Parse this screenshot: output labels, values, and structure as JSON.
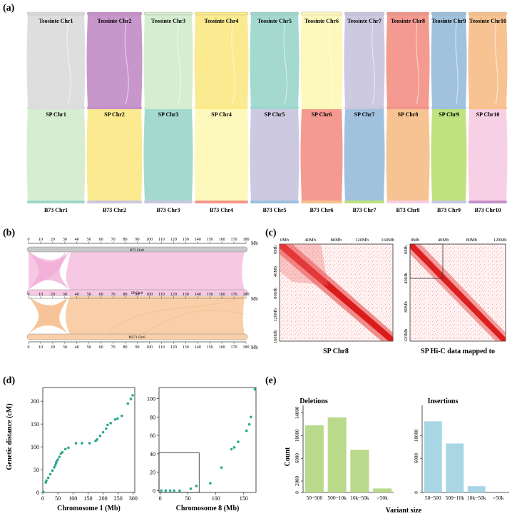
{
  "panel_labels": {
    "a": "(a)",
    "b": "(b)",
    "c": "(c)",
    "d": "(d)",
    "e": "(e)"
  },
  "panel_a": {
    "top_labels": [
      "Teosinte Chr1",
      "Teosinte Chr2",
      "Teosinte Chr3",
      "Teosinte Chr4",
      "Teosinte Chr5",
      "Teosinte Chr6",
      "Teosinte Chr7",
      "Teosinte Chr8",
      "Teosinte Chr9",
      "Teosinte Chr10"
    ],
    "mid_labels": [
      "SP Chr1",
      "SP Chr2",
      "SP Chr3",
      "SP Chr4",
      "SP Chr5",
      "SP Chr6",
      "SP Chr7",
      "SP Chr8",
      "SP Chr9",
      "SP Chr10"
    ],
    "bot_labels": [
      "B73 Chr1",
      "B73 Chr2",
      "B73 Chr3",
      "B73 Chr4",
      "B73 Chr5",
      "B73 Chr6",
      "B73 Chr7",
      "B73 Chr8",
      "B73 Chr9",
      "B73 Chr10"
    ],
    "teo_colors": [
      "#dcdcdc",
      "#c490c8",
      "#d4eccf",
      "#fbe98a",
      "#9ed7cc",
      "#fdf8b8",
      "#c9c6df",
      "#f3958a",
      "#9cbfdc",
      "#f8c08c"
    ],
    "sp_colors": [
      "#d4eccf",
      "#fbe98a",
      "#9ed7cc",
      "#fdf8b8",
      "#c9c6df",
      "#f3958a",
      "#9cbfdc",
      "#f8c08c",
      "#bde07a",
      "#f8cde4"
    ],
    "b73_colors": [
      "#9ed7cc",
      "#c9c6df",
      "#c9c6df",
      "#f3958a",
      "#9cbfdc",
      "#f8c08c",
      "#bde07a",
      "#f8cde4",
      "#c9c6df",
      "#c490c8"
    ]
  },
  "panel_b": {
    "ticks": [
      "0",
      "10",
      "20",
      "30",
      "40",
      "50",
      "60",
      "70",
      "80",
      "90",
      "100",
      "110",
      "120",
      "130",
      "140",
      "150",
      "160",
      "170",
      "180"
    ],
    "unit": "Mb",
    "chr_labels": {
      "top": "B73 Chr8",
      "mid": "SP Chr8",
      "bot": "M371 Chr8"
    },
    "colors": {
      "top_band": "#f6c8e4",
      "bot_band": "#f9cfaa",
      "top_bar": "#c8c8c8",
      "mid_bar": "#f6c8e4",
      "bot_bar": "#f9cfaa"
    }
  },
  "panel_c": {
    "left_ticks_top": [
      "0Mb",
      "40Mb",
      "80Mb",
      "120Mb",
      "160Mb"
    ],
    "left_ticks_side": [
      "0Mb",
      "40Mb",
      "80Mb",
      "120Mb",
      "160Mb"
    ],
    "right_ticks_top": [
      "0Mb",
      "40Mb",
      "80Mb",
      "120Mb"
    ],
    "right_ticks_side": [
      "0Mb",
      "40Mb",
      "80Mb",
      "120Mb"
    ],
    "left_caption": "SP Chr8",
    "right_caption": "SP Hi-C data mapped to"
  },
  "panel_d": {
    "ylabel": "Genetic distance (cM)",
    "left": {
      "xlabel": "Chromosome 1 (Mb)",
      "xticks": [
        0,
        50,
        100,
        150,
        200,
        250,
        300
      ],
      "yticks": [
        0,
        50,
        100,
        150,
        200
      ],
      "xlim": [
        0,
        305
      ],
      "ylim": [
        0,
        230
      ],
      "points": [
        [
          2,
          1
        ],
        [
          10,
          22
        ],
        [
          12,
          26
        ],
        [
          18,
          32
        ],
        [
          25,
          40
        ],
        [
          32,
          48
        ],
        [
          38,
          55
        ],
        [
          42,
          60
        ],
        [
          44,
          65
        ],
        [
          46,
          68
        ],
        [
          50,
          72
        ],
        [
          55,
          78
        ],
        [
          60,
          85
        ],
        [
          65,
          88
        ],
        [
          75,
          95
        ],
        [
          85,
          98
        ],
        [
          110,
          108
        ],
        [
          130,
          108
        ],
        [
          155,
          108
        ],
        [
          175,
          113
        ],
        [
          180,
          116
        ],
        [
          190,
          124
        ],
        [
          200,
          132
        ],
        [
          210,
          140
        ],
        [
          215,
          148
        ],
        [
          225,
          152
        ],
        [
          240,
          160
        ],
        [
          248,
          162
        ],
        [
          262,
          168
        ],
        [
          282,
          195
        ],
        [
          292,
          205
        ],
        [
          298,
          213
        ]
      ]
    },
    "right": {
      "xticks": [
        0,
        50,
        100,
        150
      ],
      "yticks": [
        0,
        20,
        40,
        60,
        80,
        100
      ],
      "xlim": [
        -2,
        172
      ],
      "ylim": [
        -2,
        112
      ],
      "xlabel": "Chromosome 8 (Mb)",
      "points": [
        [
          2,
          0
        ],
        [
          10,
          0
        ],
        [
          18,
          0
        ],
        [
          25,
          0
        ],
        [
          35,
          0
        ],
        [
          55,
          2
        ],
        [
          65,
          5
        ],
        [
          90,
          8
        ],
        [
          110,
          25
        ],
        [
          128,
          45
        ],
        [
          133,
          47
        ],
        [
          140,
          53
        ],
        [
          155,
          65
        ],
        [
          160,
          72
        ],
        [
          163,
          80
        ],
        [
          170,
          110
        ]
      ]
    },
    "point_color": "#2aa88f"
  },
  "panel_e": {
    "ylabel": "Count",
    "xlabel": "Variant size",
    "deletions": {
      "title": "Deletions",
      "categories": [
        "50~500",
        "500~10k",
        "10k~50k",
        ">50k"
      ],
      "values": [
        11800,
        13200,
        7500,
        700
      ],
      "yticks": [
        0,
        2000,
        6000,
        10000,
        14000
      ],
      "ylim": [
        0,
        14800
      ],
      "color": "#b9da8a"
    },
    "insertions": {
      "title": "Insertions",
      "categories": [
        "50~500",
        "500~10k",
        "10k~50k",
        ">50k"
      ],
      "values": [
        12500,
        8600,
        1100,
        0
      ],
      "yticks": [
        0,
        6000,
        10000
      ],
      "ylim": [
        0,
        14800
      ],
      "color": "#a9d6e5"
    }
  }
}
